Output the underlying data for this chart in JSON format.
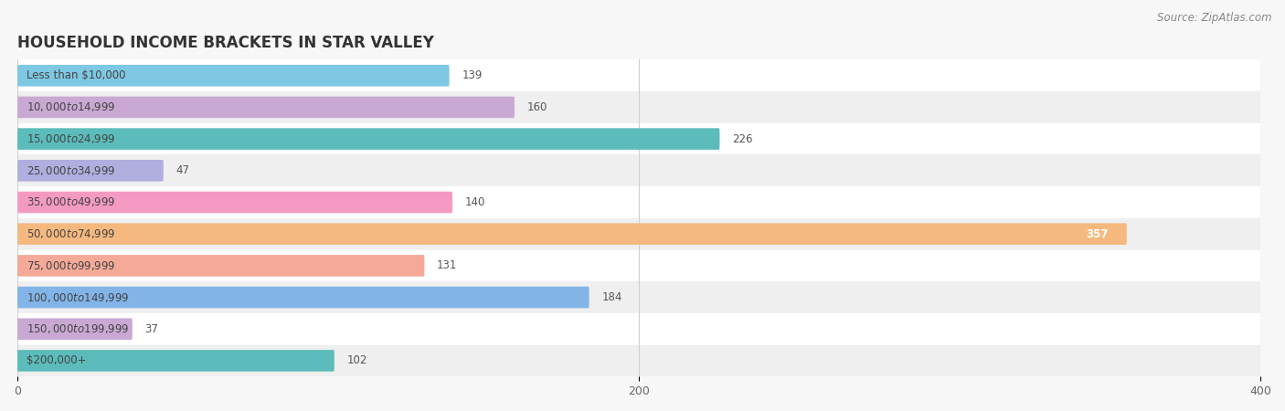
{
  "title": "HOUSEHOLD INCOME BRACKETS IN STAR VALLEY",
  "source": "Source: ZipAtlas.com",
  "categories": [
    "Less than $10,000",
    "$10,000 to $14,999",
    "$15,000 to $24,999",
    "$25,000 to $34,999",
    "$35,000 to $49,999",
    "$50,000 to $74,999",
    "$75,000 to $99,999",
    "$100,000 to $149,999",
    "$150,000 to $199,999",
    "$200,000+"
  ],
  "values": [
    139,
    160,
    226,
    47,
    140,
    357,
    131,
    184,
    37,
    102
  ],
  "colors": [
    "#7ec8e3",
    "#c9a9d4",
    "#5bbcbb",
    "#b0aede",
    "#f49ac2",
    "#f5b97f",
    "#f4a999",
    "#82b4e8",
    "#c9a9d4",
    "#5bbcbb"
  ],
  "xlim": [
    0,
    400
  ],
  "xticks": [
    0,
    200,
    400
  ],
  "bar_height": 0.68,
  "background_color": "#f7f7f7",
  "title_fontsize": 12,
  "label_fontsize": 8.5,
  "value_fontsize": 8.5,
  "source_fontsize": 8.5
}
